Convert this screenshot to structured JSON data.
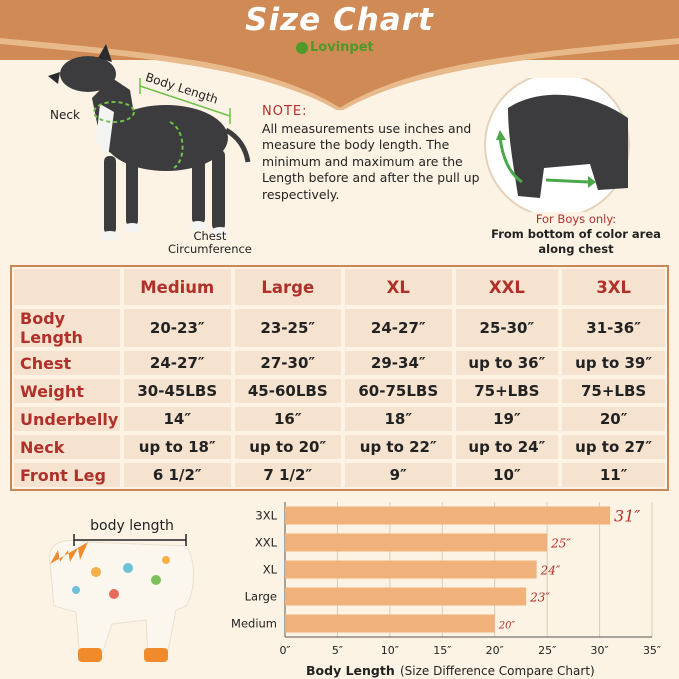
{
  "header": {
    "title": "Size Chart",
    "brand": "Lovinpet"
  },
  "dog_labels": {
    "neck": "Neck",
    "body_length": "Body Length",
    "chest_line1": "Chest",
    "chest_line2": "Circumference"
  },
  "note": {
    "title": "NOTE:",
    "text": "All measurements use inches and measure the body length. The minimum and maximum are the Length before and after the pull up respectively."
  },
  "boys_note": {
    "title": "For Boys only:",
    "text": "From bottom of color area along chest"
  },
  "size_table": {
    "columns": [
      "Medium",
      "Large",
      "XL",
      "XXL",
      "3XL"
    ],
    "rows": [
      {
        "label": "Body Length",
        "values": [
          "20-23″",
          "23-25″",
          "24-27″",
          "25-30″",
          "31-36″"
        ]
      },
      {
        "label": "Chest",
        "values": [
          "24-27″",
          "27-30″",
          "29-34″",
          "up to 36″",
          "up to 39″"
        ]
      },
      {
        "label": "Weight",
        "values": [
          "30-45LBS",
          "45-60LBS",
          "60-75LBS",
          "75+LBS",
          "75+LBS"
        ]
      },
      {
        "label": "Underbelly",
        "values": [
          "14″",
          "16″",
          "18″",
          "19″",
          "20″"
        ]
      },
      {
        "label": "Neck",
        "values": [
          "up to 18″",
          "up to 20″",
          "up to 22″",
          "up to 24″",
          "up to 27″"
        ]
      },
      {
        "label": "Front Leg",
        "values": [
          "6 1/2″",
          "7 1/2″",
          "9″",
          "10″",
          "11″"
        ]
      }
    ]
  },
  "product": {
    "body_length_label": "body length"
  },
  "chart_data": {
    "type": "bar",
    "orientation": "horizontal",
    "categories": [
      "3XL",
      "XXL",
      "XL",
      "Large",
      "Medium"
    ],
    "values": [
      31,
      25,
      24,
      23,
      20
    ],
    "value_labels": [
      "31″",
      "25″",
      "24″",
      "23″",
      "20″"
    ],
    "xlim": [
      0,
      35
    ],
    "x_ticks": [
      0,
      5,
      10,
      15,
      20,
      25,
      30,
      35
    ],
    "x_tick_labels": [
      "0″",
      "5″",
      "10″",
      "15″",
      "20″",
      "25″",
      "30″",
      "35″"
    ],
    "xlabel": "Body Length",
    "xlabel_note": "(Size Difference Compare Chart)",
    "grid": true,
    "bar_color": "#f0b27a",
    "label_color": "#b0302a"
  },
  "colors": {
    "accent": "#d08a55",
    "heading_red": "#b0302a",
    "brand_green": "#4d9a2a",
    "background": "#fdf3e4"
  }
}
